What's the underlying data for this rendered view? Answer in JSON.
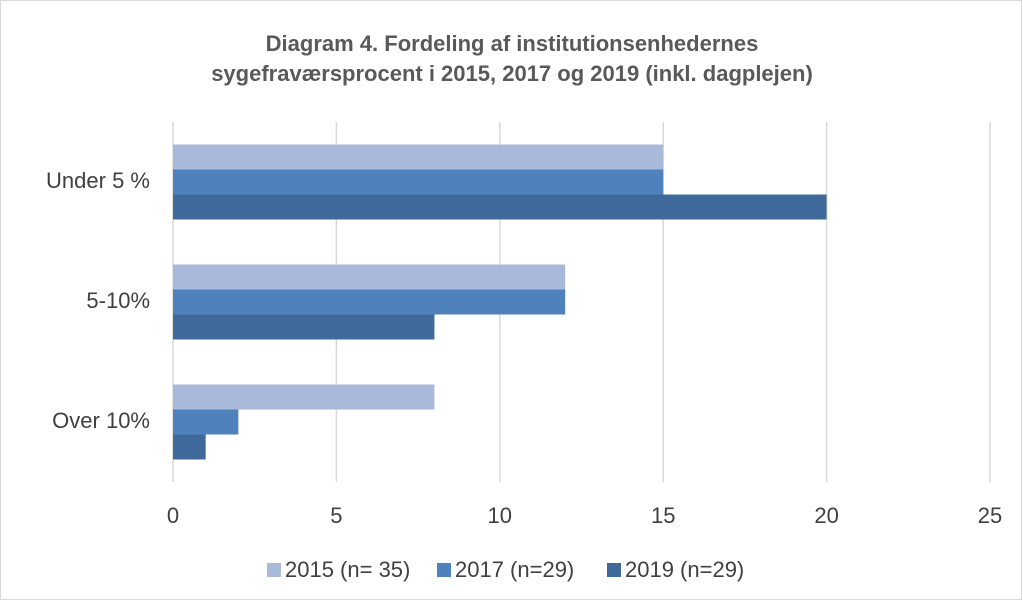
{
  "chart_data": {
    "type": "hbar",
    "title": [
      "Diagram 4. Fordeling af institutionsenhedernes",
      "sygefraværsprocent i 2015, 2017 og 2019 (inkl. dagplejen)"
    ],
    "categories": [
      "Under 5 %",
      "5-10%",
      "Over 10%"
    ],
    "series": [
      {
        "name": "2015 (n= 35)",
        "color": "#a9b9d9",
        "values": [
          15,
          12,
          8
        ]
      },
      {
        "name": "2017 (n=29)",
        "color": "#4f81bd",
        "values": [
          15,
          12,
          2
        ]
      },
      {
        "name": "2019 (n=29)",
        "color": "#3f699b",
        "values": [
          20,
          8,
          1
        ]
      }
    ],
    "xlim": [
      0,
      25
    ],
    "xticks": [
      0,
      5,
      10,
      15,
      20,
      25
    ],
    "grid": true,
    "legend": "bottom"
  }
}
